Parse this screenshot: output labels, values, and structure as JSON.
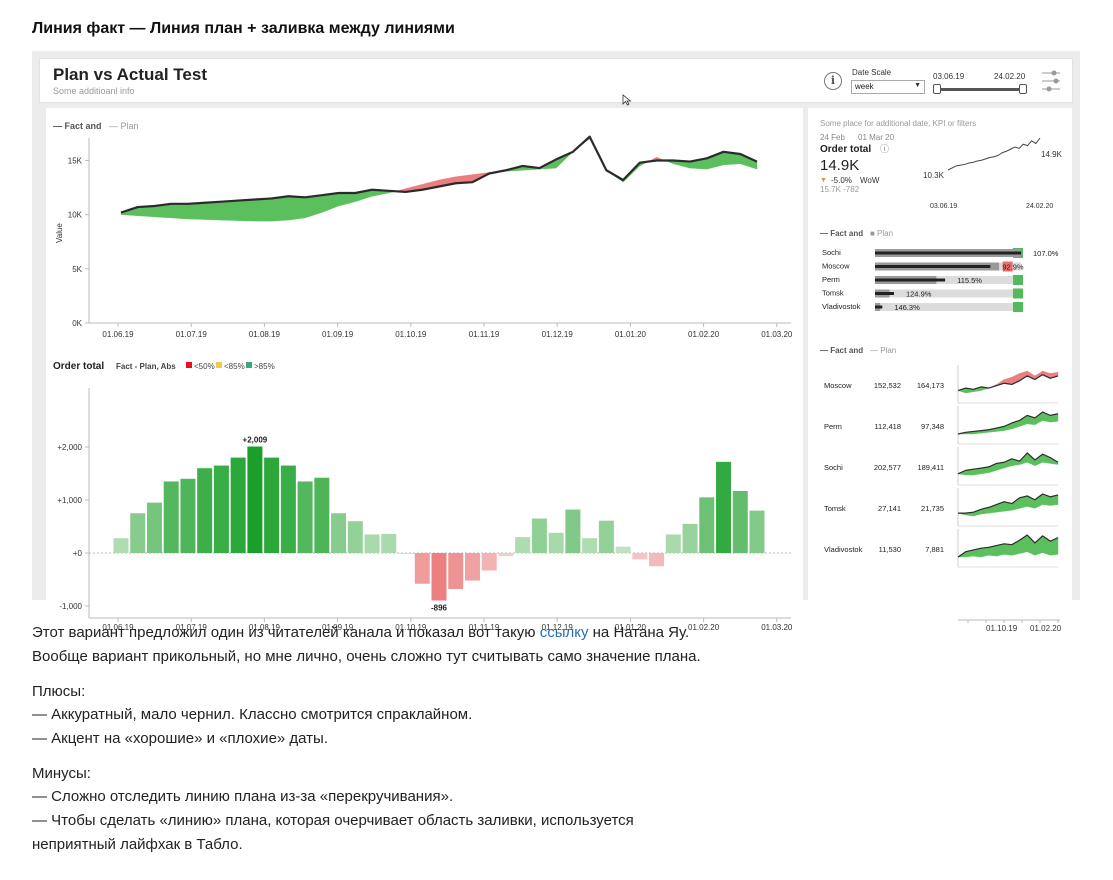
{
  "post": {
    "title": "Линия факт — Линия план + заливка между линиями"
  },
  "dashboard": {
    "title": "Plan vs Actual Test",
    "subtitle": "Some additioanl info",
    "info_icon": "ⓘ",
    "date_scale_label": "Date Scale",
    "date_scale_value": "week",
    "range_start": "03.06.19",
    "range_end": "24.02.20",
    "slider_value": [
      0.0,
      1.0
    ]
  },
  "left_panel": {
    "line_legend_fact": "— Fact and",
    "line_legend_plan": "— Plan",
    "y_axis_label": "Value",
    "bar_title": "Order total",
    "bar_subtitle": "Fact - Plan, Abs",
    "bar_legend": [
      {
        "label": "<50%",
        "color": "#e8101a"
      },
      {
        "label": "<85%",
        "color": "#f2c94c"
      },
      {
        "label": ">85%",
        "color": "#3aa87a"
      }
    ],
    "peak_label": "+2,009",
    "trough_label": "-896"
  },
  "chart_data": [
    {
      "type": "line",
      "legend": [
        "Fact",
        "Plan"
      ],
      "ylabel": "Value",
      "ylim": [
        0,
        18000
      ],
      "yticks": [
        "0K",
        "5K",
        "10K",
        "15K"
      ],
      "xticks": [
        "01.06.19",
        "01.07.19",
        "01.08.19",
        "01.09.19",
        "01.10.19",
        "01.11.19",
        "01.12.19",
        "01.01.20",
        "01.02.20",
        "01.03.20"
      ],
      "x_start": "03.06.19",
      "x_step_days": 7,
      "series": [
        {
          "name": "Fact",
          "values": [
            10200,
            10700,
            10800,
            11000,
            11000,
            11100,
            11200,
            11300,
            11400,
            11500,
            11700,
            11600,
            11800,
            12000,
            12000,
            12300,
            12200,
            12100,
            12300,
            12600,
            12900,
            13000,
            13800,
            14100,
            14500,
            14300,
            15100,
            15800,
            17200,
            14100,
            13200,
            14800,
            15000,
            15000,
            14900,
            15200,
            15800,
            15600,
            14900
          ]
        },
        {
          "name": "Plan",
          "values": [
            10000,
            9900,
            9800,
            9700,
            9600,
            9550,
            9500,
            9450,
            9400,
            9400,
            9500,
            9700,
            10200,
            10800,
            11200,
            11700,
            12000,
            12400,
            12800,
            13200,
            13500,
            13700,
            13900,
            14000,
            14100,
            14200,
            14300,
            15800,
            17000,
            14100,
            13000,
            14500,
            15300,
            14700,
            14300,
            14200,
            14600,
            14700,
            14200
          ]
        }
      ]
    },
    {
      "type": "bar",
      "title": "Order total",
      "subtitle": "Fact - Plan, Abs",
      "ylim": [
        -1000,
        2000
      ],
      "yticks": [
        "-1,000",
        "+0",
        "+1,000",
        "+2,000"
      ],
      "xticks": [
        "01.06.19",
        "01.07.19",
        "01.08.19",
        "01.09.19",
        "01.10.19",
        "01.11.19",
        "01.12.19",
        "01.01.20",
        "01.02.20",
        "01.03.20"
      ],
      "values": [
        280,
        750,
        950,
        1350,
        1400,
        1600,
        1650,
        1800,
        2009,
        1800,
        1650,
        1350,
        1420,
        750,
        600,
        350,
        360,
        0,
        -580,
        -896,
        -680,
        -520,
        -330,
        -60,
        300,
        650,
        380,
        820,
        280,
        610,
        120,
        -120,
        -250,
        350,
        550,
        1050,
        1720,
        1170,
        800
      ],
      "labels": {
        "peak": "+2,009",
        "trough": "-896"
      }
    }
  ],
  "kpi": {
    "note": "Some place for additional date, KPI or filters",
    "date_a": "24 Feb",
    "date_b": "01 Mar 20",
    "title": "Order total",
    "title_icon": "ⓘ",
    "value": "14.9K",
    "change_arrow": "▼",
    "change": "-5.0%",
    "change_label": "WoW",
    "prev": "15.7K -782",
    "spark_min": "10.3K",
    "spark_max": "14.9K",
    "spark_start": "03.06.19",
    "spark_end": "24.02.20",
    "spark_values": [
      10.3,
      10.6,
      10.9,
      11.0,
      11.1,
      11.3,
      11.4,
      11.6,
      11.7,
      11.9,
      12.1,
      12.2,
      12.4,
      12.8,
      13.0,
      13.3,
      13.6,
      13.4,
      14.0,
      13.8,
      14.5,
      14.1,
      14.9
    ]
  },
  "bullet": {
    "legend_fact": "— Fact and",
    "legend_plan": "■ Plan",
    "rows": [
      {
        "city": "Sochi",
        "fact": 1.07,
        "plan": 1.0,
        "pct": "107.0%",
        "status_color": "#55b85a"
      },
      {
        "city": "Moscow",
        "fact": 0.929,
        "plan": 1.0,
        "pct": "92.9%",
        "status_color": "#e96f6f"
      },
      {
        "city": "Perm",
        "fact": 1.155,
        "plan": 1.0,
        "pct": "115.5%",
        "status_color": "#55b85a"
      },
      {
        "city": "Tomsk",
        "fact": 1.249,
        "plan": 1.0,
        "pct": "124.9%",
        "status_color": "#55b85a"
      },
      {
        "city": "Vladivostok",
        "fact": 1.463,
        "plan": 1.0,
        "pct": "146.3%",
        "status_color": "#55b85a"
      }
    ]
  },
  "small_multiples": {
    "legend_fact": "— Fact and",
    "legend_plan": "— Plan",
    "x_start": "01.10.19",
    "x_end": "01.02.20",
    "rows": [
      {
        "city": "Moscow",
        "fact": "152,532",
        "plan": "164,173",
        "fact_series": [
          4,
          4.2,
          4.1,
          4.3,
          4.2,
          4.4,
          4.6,
          4.5,
          4.8,
          5.2,
          4.9,
          5.3,
          5.0,
          5.2
        ],
        "plan_series": [
          4,
          3.8,
          3.9,
          4.0,
          4.2,
          4.5,
          4.9,
          5.1,
          5.4,
          5.6,
          5.2,
          5.6,
          5.4,
          5.5
        ]
      },
      {
        "city": "Perm",
        "fact": "112,418",
        "plan": "97,348",
        "fact_series": [
          3,
          3.2,
          3.3,
          3.4,
          3.5,
          3.7,
          3.9,
          4.3,
          4.6,
          5.2,
          4.9,
          5.6,
          5.2,
          5.4
        ],
        "plan_series": [
          3,
          3.0,
          3.0,
          3.1,
          3.2,
          3.3,
          3.4,
          3.6,
          3.9,
          4.2,
          4.1,
          4.6,
          4.4,
          4.5
        ]
      },
      {
        "city": "Sochi",
        "fact": "202,577",
        "plan": "189,411",
        "fact_series": [
          4,
          4.3,
          4.4,
          4.5,
          4.6,
          4.9,
          5.0,
          5.3,
          5.1,
          5.8,
          5.2,
          5.7,
          5.4,
          5.0
        ],
        "plan_series": [
          4,
          3.9,
          3.9,
          4.0,
          4.1,
          4.3,
          4.5,
          4.7,
          4.8,
          5.0,
          4.7,
          5.0,
          4.9,
          4.8
        ]
      },
      {
        "city": "Tomsk",
        "fact": "27,141",
        "plan": "21,735",
        "fact_series": [
          2,
          2.0,
          2.1,
          2.4,
          2.6,
          2.9,
          3.2,
          3.0,
          3.6,
          3.8,
          3.4,
          4.0,
          3.7,
          3.9
        ],
        "plan_series": [
          2,
          1.8,
          1.7,
          1.9,
          2.0,
          2.1,
          2.2,
          2.3,
          2.5,
          2.7,
          2.5,
          2.9,
          2.8,
          2.9
        ]
      },
      {
        "city": "Vladivostok",
        "fact": "11,530",
        "plan": "7,881",
        "fact_series": [
          2,
          2.6,
          2.8,
          3.0,
          3.1,
          3.3,
          3.5,
          3.4,
          3.9,
          4.5,
          3.6,
          4.4,
          3.8,
          4.2
        ],
        "plan_series": [
          2,
          2.0,
          2.1,
          2.0,
          2.2,
          2.1,
          2.3,
          2.2,
          2.4,
          2.6,
          2.2,
          2.5,
          2.2,
          2.3
        ]
      }
    ]
  },
  "article": {
    "p1_before": "Этот вариант предложил один из читателей канала и показал вот такую ",
    "p1_link": "ссылку",
    "p1_after": " на Натана Яу.",
    "p2": "Вообще вариант прикольный, но мне лично, очень сложно тут считывать само значение плана.",
    "pros_title": "Плюсы:",
    "pros": [
      "— Аккуратный, мало чернил. Классно смотрится спраклайном.",
      "— Акцент на «хорошие» и «плохие» даты."
    ],
    "cons_title": "Минусы:",
    "cons": [
      "— Сложно отследить линию плана из-за «перекручивания».",
      "— Чтобы сделать «линию» плана, которая очерчивает область заливки, используется",
      "неприятный лайфхак в Табло."
    ]
  }
}
